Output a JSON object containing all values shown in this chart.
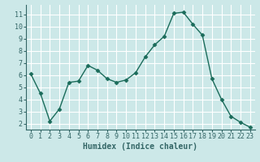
{
  "x": [
    0,
    1,
    2,
    3,
    4,
    5,
    6,
    7,
    8,
    9,
    10,
    11,
    12,
    13,
    14,
    15,
    16,
    17,
    18,
    19,
    20,
    21,
    22,
    23
  ],
  "y": [
    6.1,
    4.5,
    2.2,
    3.2,
    5.4,
    5.5,
    6.8,
    6.4,
    5.7,
    5.4,
    5.6,
    6.2,
    7.5,
    8.5,
    9.2,
    11.1,
    11.2,
    10.2,
    9.3,
    5.7,
    4.0,
    2.6,
    2.1,
    1.7
  ],
  "line_color": "#1a6b5a",
  "marker": "D",
  "markersize": 2.5,
  "linewidth": 1.0,
  "xlabel": "Humidex (Indice chaleur)",
  "xlim": [
    -0.5,
    23.5
  ],
  "ylim": [
    1.5,
    11.8
  ],
  "yticks": [
    2,
    3,
    4,
    5,
    6,
    7,
    8,
    9,
    10,
    11
  ],
  "xticks": [
    0,
    1,
    2,
    3,
    4,
    5,
    6,
    7,
    8,
    9,
    10,
    11,
    12,
    13,
    14,
    15,
    16,
    17,
    18,
    19,
    20,
    21,
    22,
    23
  ],
  "bg_color": "#cce8e8",
  "grid_color": "#ffffff",
  "tick_fontsize": 6,
  "xlabel_fontsize": 7,
  "xlabel_fontweight": "bold",
  "axis_color": "#336666",
  "bottom_bar_color": "#336666"
}
